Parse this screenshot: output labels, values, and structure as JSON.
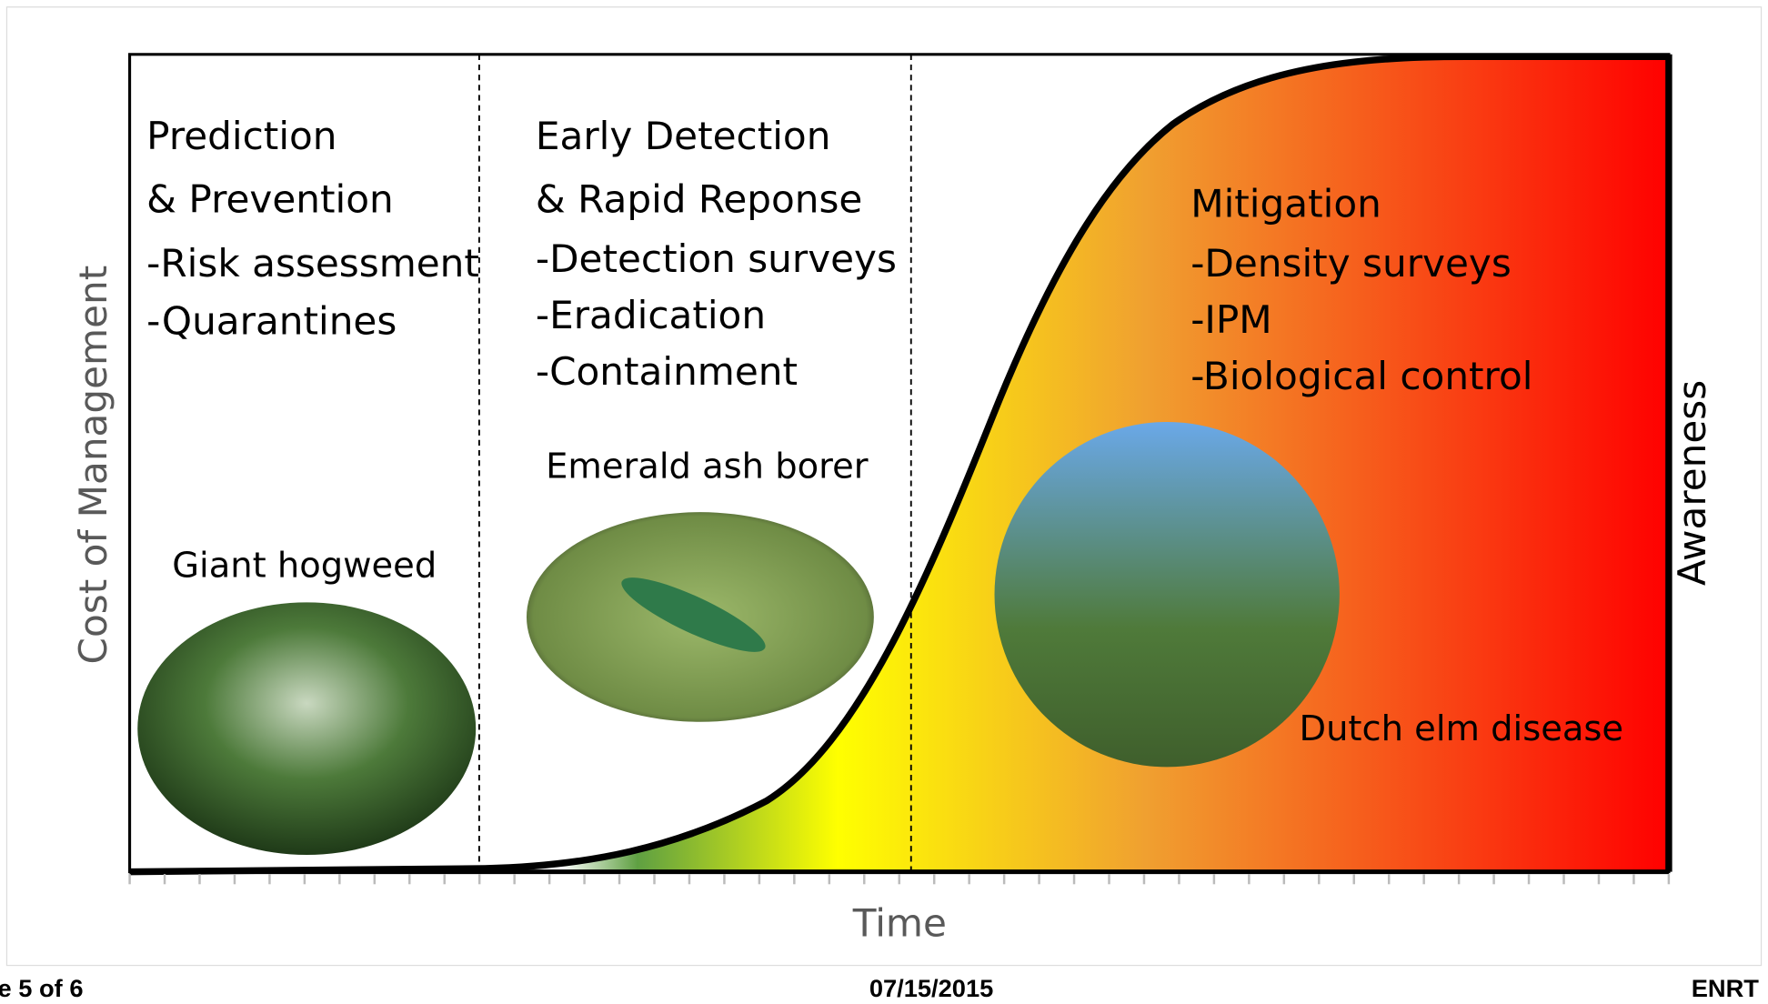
{
  "axis_labels": {
    "y": "Cost of Management",
    "y2": "Awareness",
    "x": "Time"
  },
  "sections": [
    {
      "title_lines": [
        "Prediction",
        "& Prevention"
      ],
      "items": [
        "-Risk assessment",
        "-Quarantines"
      ],
      "image_caption": "Giant hogweed"
    },
    {
      "title_lines": [
        "Early Detection",
        "& Rapid Reponse"
      ],
      "items": [
        "-Detection surveys",
        "-Eradication",
        "-Containment"
      ],
      "image_caption": "Emerald ash borer"
    },
    {
      "title_lines": [
        "Mitigation"
      ],
      "items": [
        "-Density surveys",
        "-IPM",
        "-Biological control"
      ],
      "image_caption": "Dutch elm disease"
    }
  ],
  "footer": {
    "left": "e 5 of 6",
    "center": "07/15/2015",
    "right": "ENRT"
  }
}
